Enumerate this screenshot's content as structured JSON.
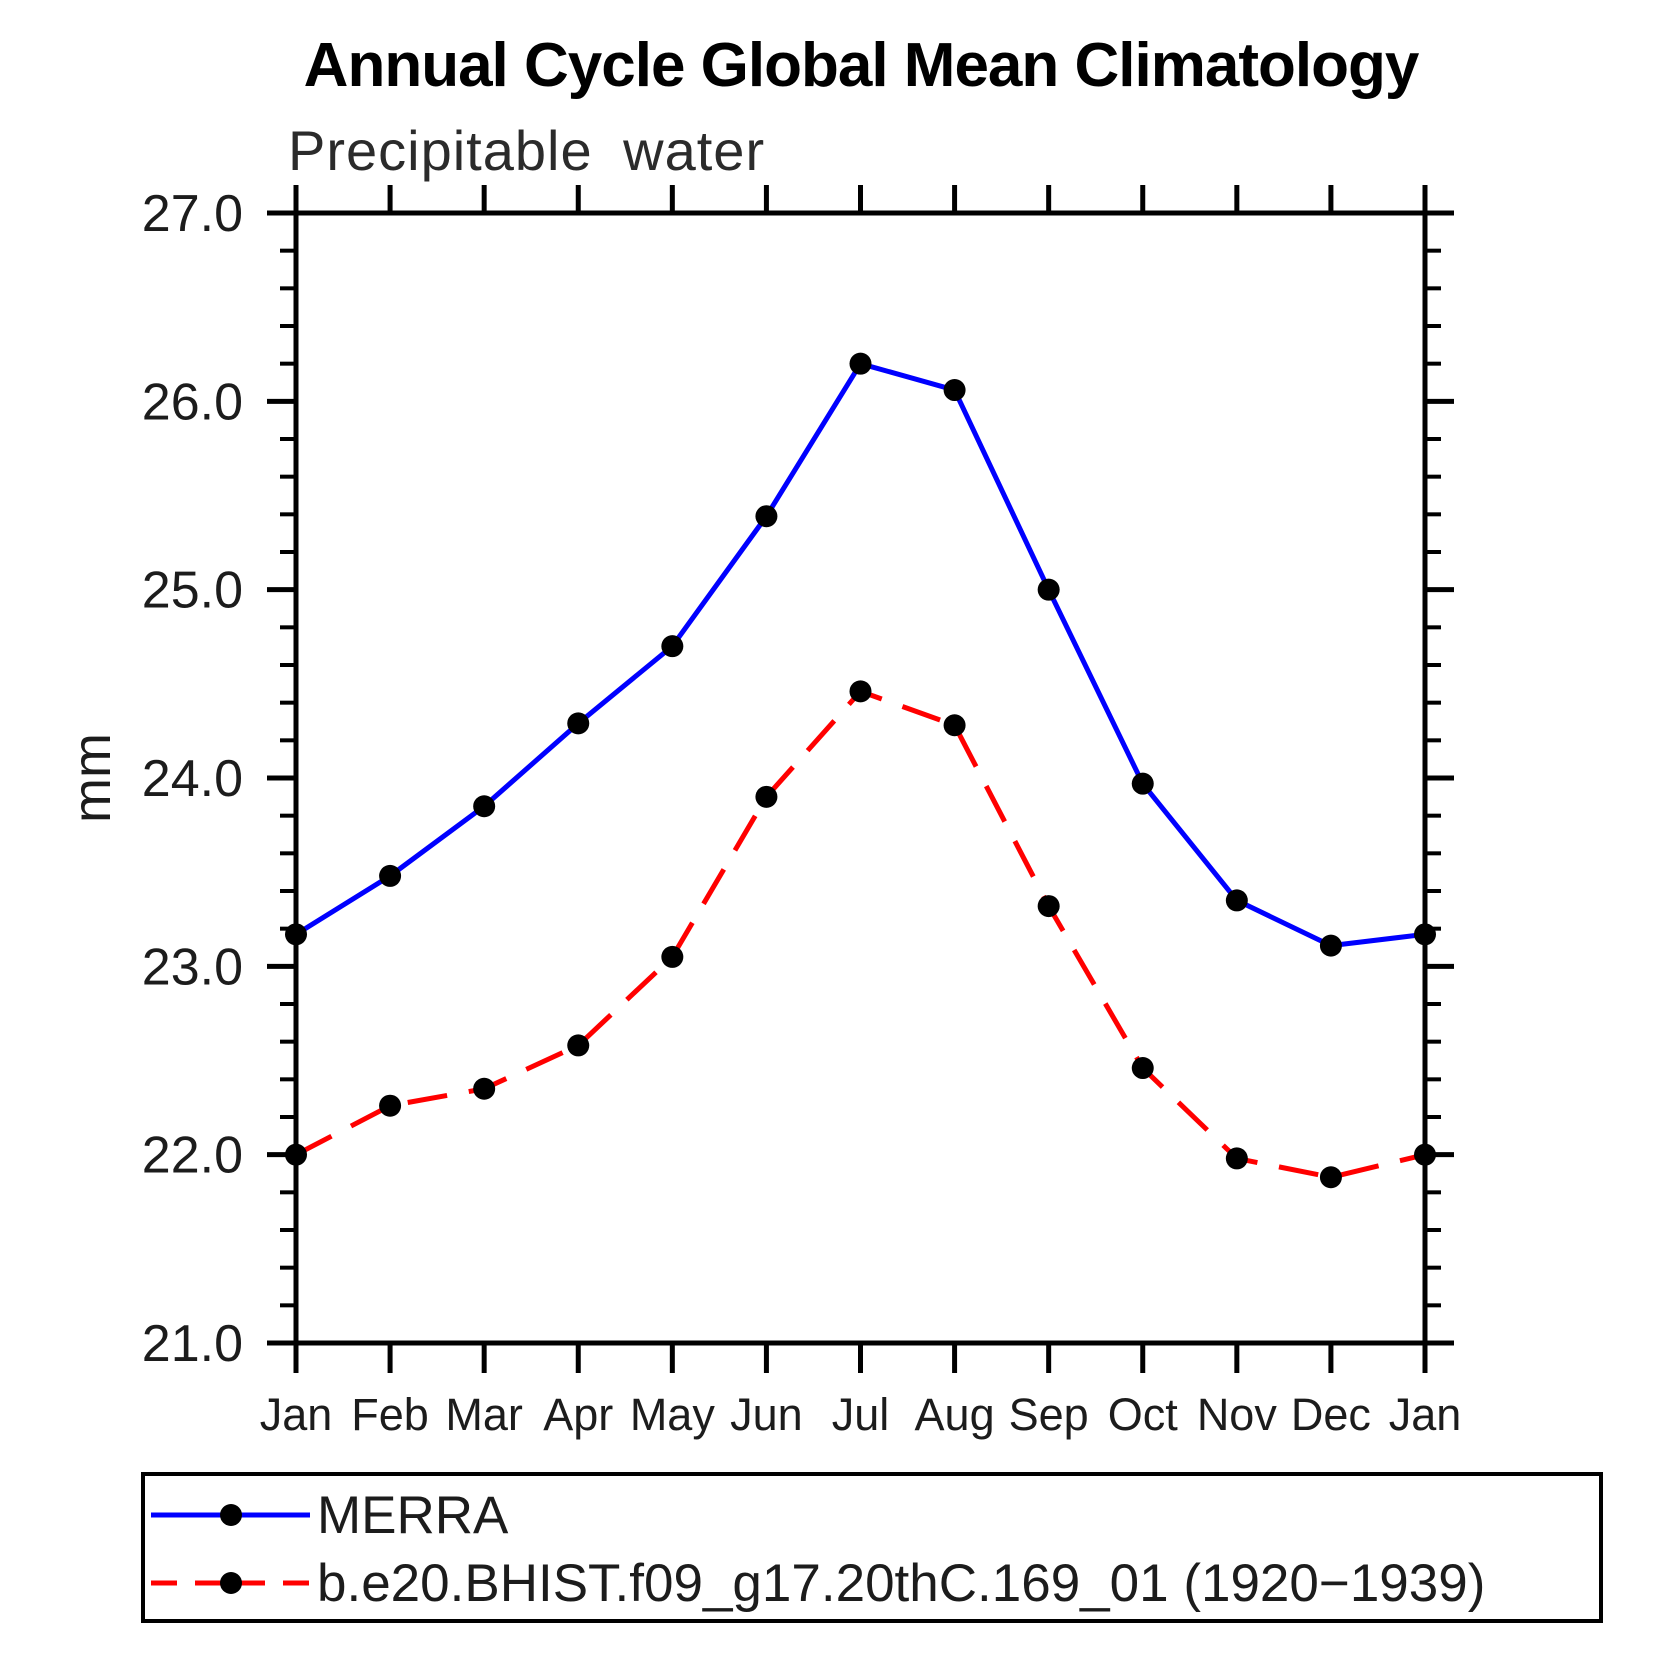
{
  "chart_data": {
    "type": "line",
    "title": "Annual Cycle Global Mean Climatology",
    "subtitle": "Precipitable water",
    "ylabel": "mm",
    "categories": [
      "Jan",
      "Feb",
      "Mar",
      "Apr",
      "May",
      "Jun",
      "Jul",
      "Aug",
      "Sep",
      "Oct",
      "Nov",
      "Dec",
      "Jan"
    ],
    "ylim": [
      21.0,
      27.0
    ],
    "ytick_step": 1.0,
    "ytick_minor_step": 0.2,
    "ytick_labels": [
      "21.0",
      "22.0",
      "23.0",
      "24.0",
      "25.0",
      "26.0",
      "27.0"
    ],
    "grid": false,
    "legend_position": "bottom",
    "frame_color": "#000000",
    "marker_color": "#000000",
    "series": [
      {
        "name": "MERRA",
        "color": "#0000ff",
        "style": "solid",
        "marker": "circle",
        "values": [
          23.17,
          23.48,
          23.85,
          24.29,
          24.7,
          25.39,
          26.2,
          26.06,
          25.0,
          23.97,
          23.35,
          23.11,
          23.17
        ]
      },
      {
        "name": "b.e20.BHIST.f09_g17.20thC.169_01 (1920−1939)",
        "color": "#ff0000",
        "style": "dashed",
        "marker": "circle",
        "values": [
          22.0,
          22.26,
          22.35,
          22.58,
          23.05,
          23.9,
          24.46,
          24.28,
          23.32,
          22.46,
          21.98,
          21.88,
          22.0
        ]
      }
    ]
  }
}
